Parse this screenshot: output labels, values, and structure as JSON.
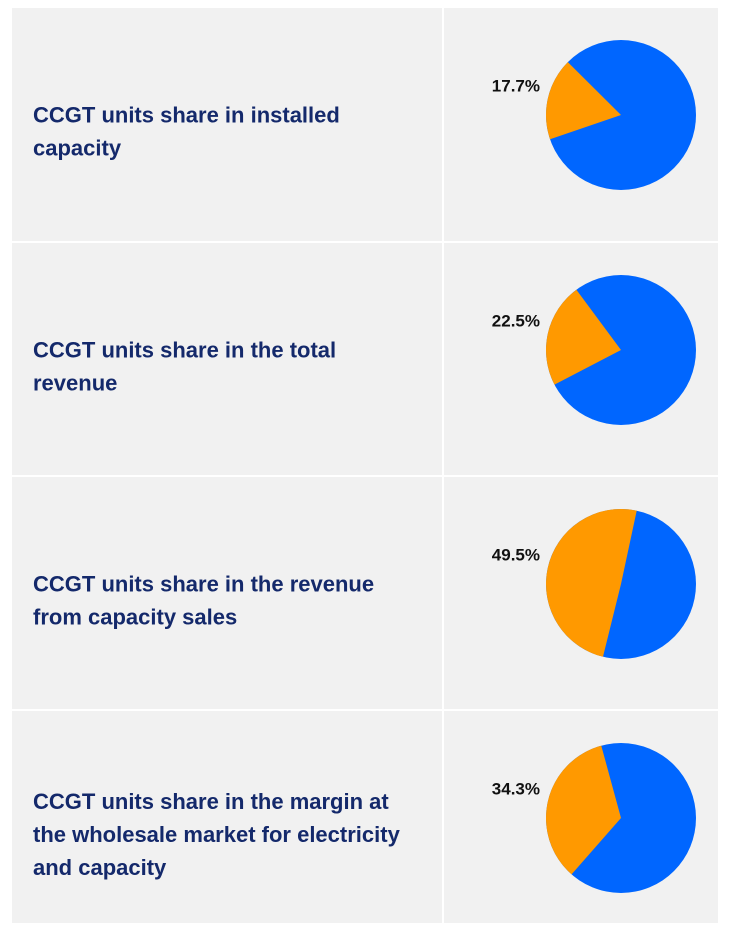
{
  "chart_data": [
    {
      "type": "pie",
      "label_lines": [
        "CCGT units share in installed",
        "capacity"
      ],
      "value": 17.7,
      "value_label": "17.7%",
      "color": "#ff9900",
      "rest_color": "#0066ff"
    },
    {
      "type": "pie",
      "label_lines": [
        "CCGT units share in the total",
        "revenue"
      ],
      "value": 22.5,
      "value_label": "22.5%",
      "color": "#ff9900",
      "rest_color": "#0066ff"
    },
    {
      "type": "pie",
      "label_lines": [
        "CCGT units share in the revenue",
        "from capacity sales"
      ],
      "value": 49.5,
      "value_label": "49.5%",
      "color": "#ff9900",
      "rest_color": "#0066ff"
    },
    {
      "type": "pie",
      "label_lines": [
        "CCGT units share in the margin at",
        "the wholesale market for electricity",
        "and capacity"
      ],
      "value": 34.3,
      "value_label": "34.3%",
      "color": "#ff9900",
      "rest_color": "#0066ff"
    }
  ]
}
